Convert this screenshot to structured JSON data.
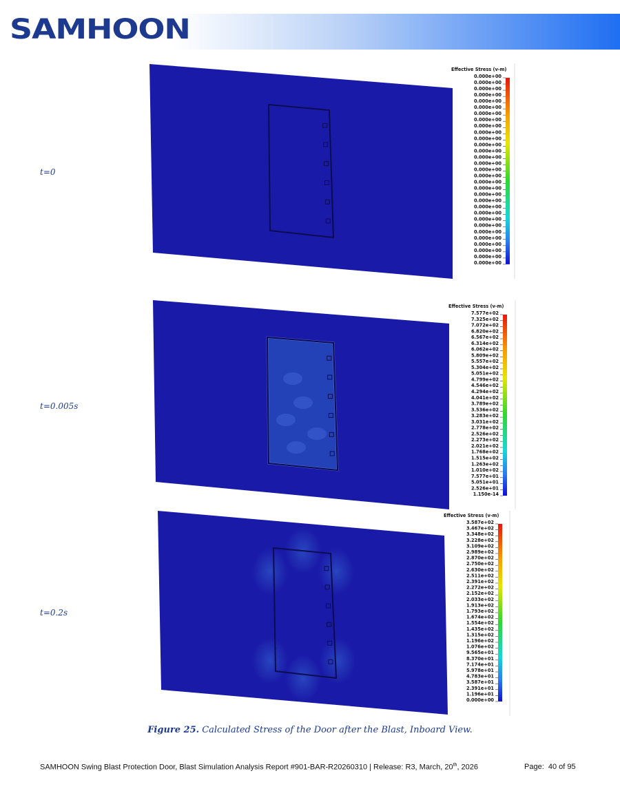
{
  "header": {
    "logo": "SAMHOON"
  },
  "figures": [
    {
      "time": "t=0",
      "legend_title": "Effective Stress (v-m)",
      "legend_labels": [
        "0.000e+00",
        "0.000e+00",
        "0.000e+00",
        "0.000e+00",
        "0.000e+00",
        "0.000e+00",
        "0.000e+00",
        "0.000e+00",
        "0.000e+00",
        "0.000e+00",
        "0.000e+00",
        "0.000e+00",
        "0.000e+00",
        "0.000e+00",
        "0.000e+00",
        "0.000e+00",
        "0.000e+00",
        "0.000e+00",
        "0.000e+00",
        "0.000e+00",
        "0.000e+00",
        "0.000e+00",
        "0.000e+00",
        "0.000e+00",
        "0.000e+00",
        "0.000e+00",
        "0.000e+00",
        "0.000e+00",
        "0.000e+00",
        "0.000e+00",
        "0.000e+00"
      ]
    },
    {
      "time": "t=0.005s",
      "legend_title": "Effective Stress (v-m)",
      "legend_labels": [
        "7.577e+02",
        "7.325e+02",
        "7.072e+02",
        "6.820e+02",
        "6.567e+02",
        "6.314e+02",
        "6.062e+02",
        "5.809e+02",
        "5.557e+02",
        "5.304e+02",
        "5.051e+02",
        "4.799e+02",
        "4.546e+02",
        "4.294e+02",
        "4.041e+02",
        "3.789e+02",
        "3.536e+02",
        "3.283e+02",
        "3.031e+02",
        "2.778e+02",
        "2.526e+02",
        "2.273e+02",
        "2.021e+02",
        "1.768e+02",
        "1.515e+02",
        "1.263e+02",
        "1.010e+02",
        "7.577e+01",
        "5.051e+01",
        "2.526e+01",
        "1.150e-14"
      ]
    },
    {
      "time": "t=0.2s",
      "legend_title": "Effective Stress (v-m)",
      "legend_labels": [
        "3.587e+02",
        "3.467e+02",
        "3.348e+02",
        "3.228e+02",
        "3.109e+02",
        "2.989e+02",
        "2.870e+02",
        "2.750e+02",
        "2.630e+02",
        "2.511e+02",
        "2.391e+02",
        "2.272e+02",
        "2.152e+02",
        "2.033e+02",
        "1.913e+02",
        "1.793e+02",
        "1.674e+02",
        "1.554e+02",
        "1.435e+02",
        "1.315e+02",
        "1.196e+02",
        "1.076e+02",
        "9.565e+01",
        "8.370e+01",
        "7.174e+01",
        "5.978e+01",
        "4.783e+01",
        "3.587e+01",
        "2.391e+01",
        "1.196e+01",
        "0.000e+00"
      ]
    }
  ],
  "caption": {
    "label": "Figure 25.",
    "text": "Calculated Stress of the Door after the Blast, Inboard View."
  },
  "footer": {
    "report": "SAMHOON Swing Blast Protection Door, Blast Simulation Analysis Report #901-BAR-R20260310 | Release: R3, March, 20",
    "superscript": "th",
    "report_end": ", 2026",
    "page": "Page:  40 of 95"
  }
}
